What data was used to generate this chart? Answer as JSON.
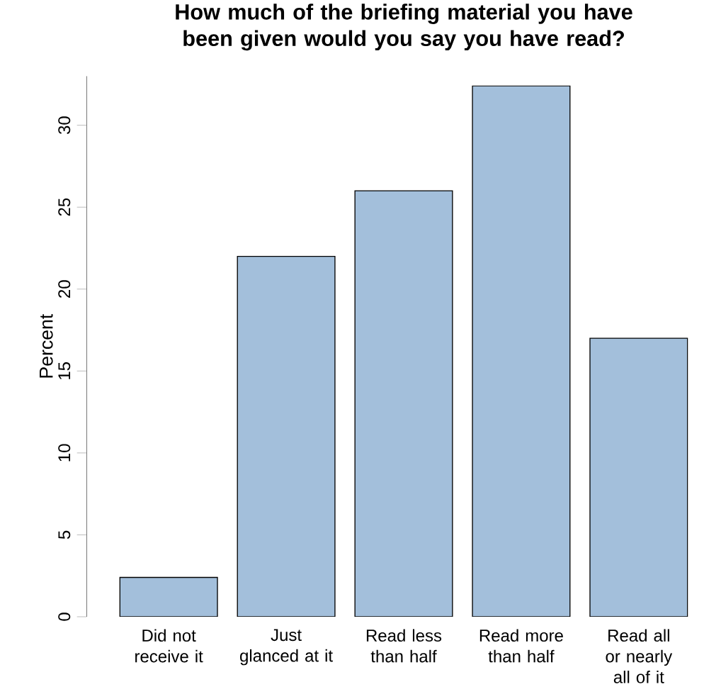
{
  "chart_data": {
    "type": "bar",
    "title": "How much of the briefing material you have been given would you say you have read?",
    "ylabel": "Percent",
    "categories": [
      "Did not receive it",
      "Just glanced at it",
      "Read less than half",
      "Read more than half",
      "Read all or nearly all of it"
    ],
    "values": [
      2.4,
      22,
      26,
      32.4,
      17
    ],
    "color": "#a3bfdb",
    "ylim": [
      0,
      33
    ],
    "yticks": [
      0,
      5,
      10,
      15,
      20,
      25,
      30
    ]
  }
}
